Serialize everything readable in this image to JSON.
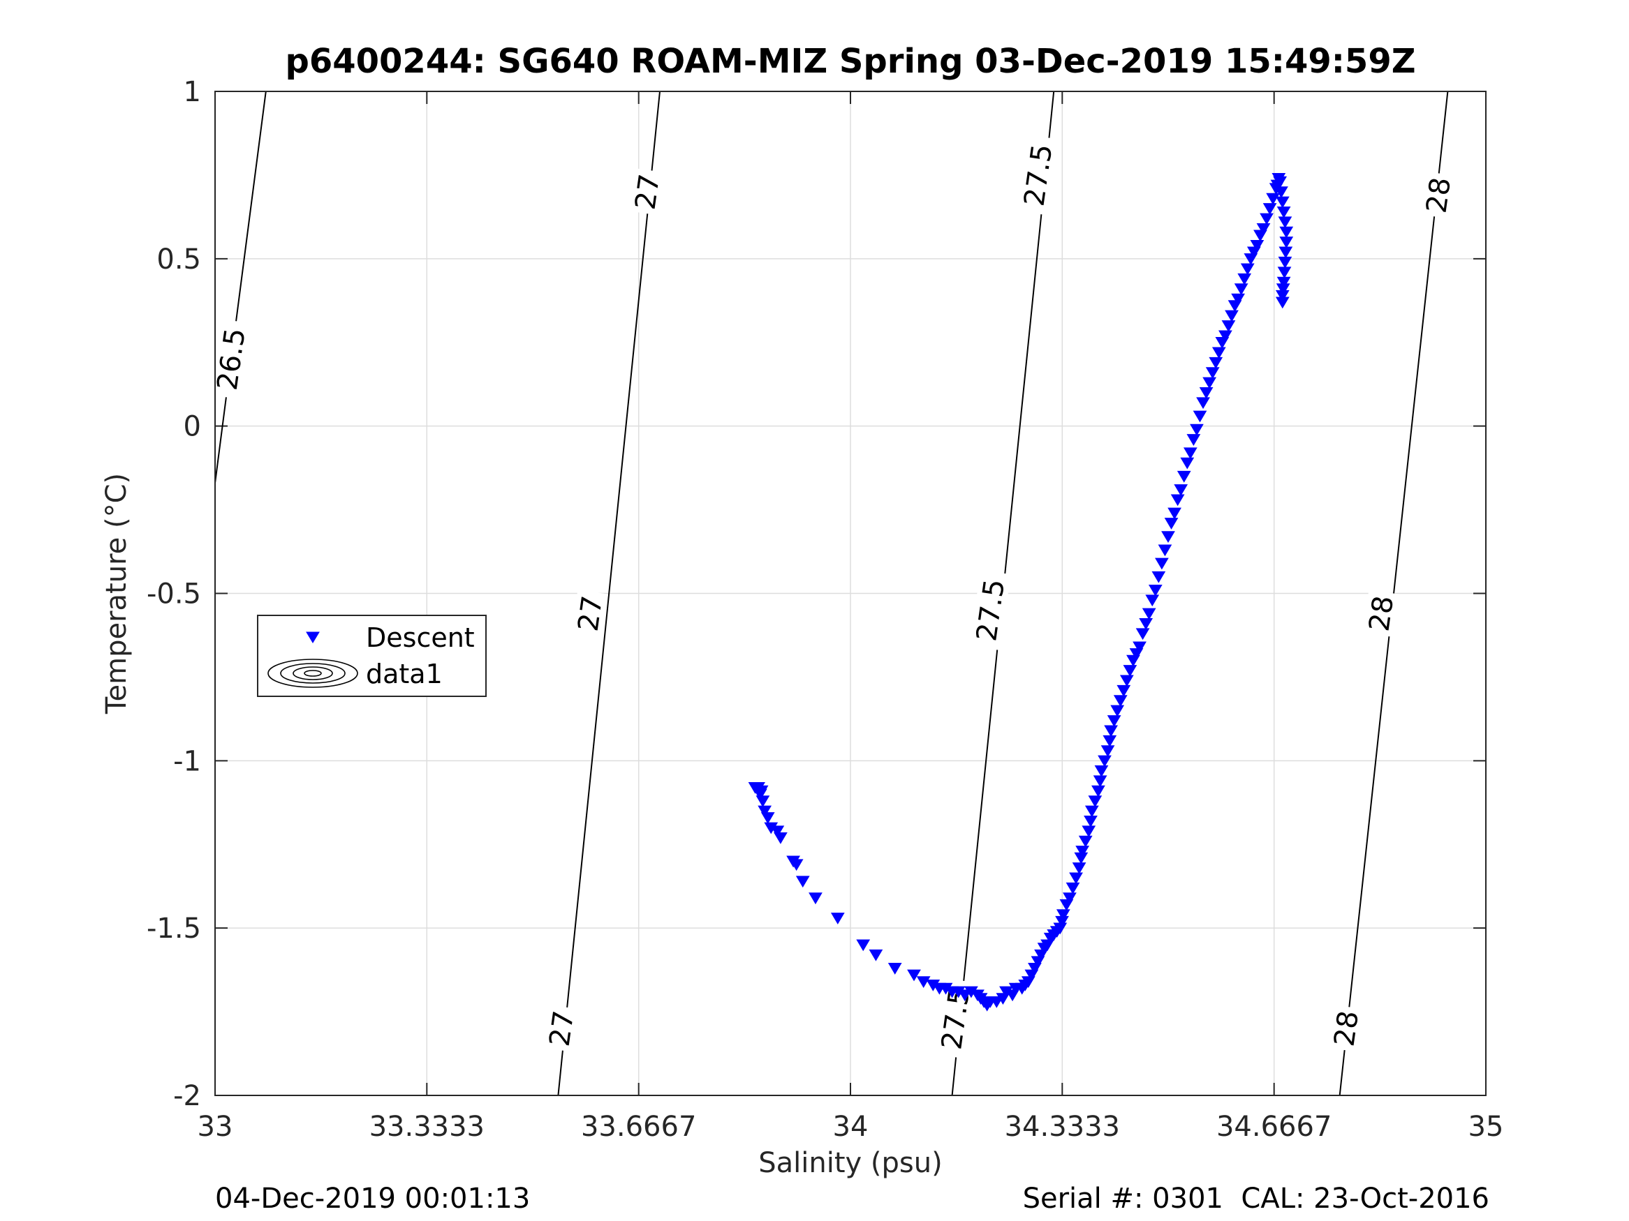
{
  "footer": {
    "timestamp": "04-Dec-2019 00:01:13",
    "serial": "Serial #: 0301  CAL: 23-Oct-2016"
  },
  "chart_data": {
    "type": "scatter",
    "title": "p6400244: SG640 ROAM-MIZ Spring 03-Dec-2019 15:49:59Z",
    "xlabel": "Salinity (psu)",
    "ylabel": "Temperature (°C)",
    "xlim": [
      33,
      35
    ],
    "ylim": [
      -2,
      1
    ],
    "xticks": [
      "33",
      "33.3333",
      "33.6667",
      "34",
      "34.3333",
      "34.6667",
      "35"
    ],
    "yticks": [
      "1",
      "0.5",
      "0",
      "-0.5",
      "-1",
      "-1.5",
      "-2"
    ],
    "grid": true,
    "legend": {
      "placement": "mid-left",
      "entries": [
        "Descent",
        "data1"
      ]
    },
    "colors": {
      "descent": "#0000ff",
      "contours": "#000000",
      "grid": "#dddddd"
    },
    "contours": {
      "name": "data1",
      "lines": [
        {
          "level": "26.5",
          "points": [
            [
              33.0,
              -0.17
            ],
            [
              33.08,
              1.0
            ]
          ]
        },
        {
          "level": "27",
          "points": [
            [
              33.54,
              -2.0
            ],
            [
              33.7,
              1.0
            ]
          ]
        },
        {
          "level": "27.5",
          "points": [
            [
              34.16,
              -2.0
            ],
            [
              34.32,
              1.0
            ]
          ]
        },
        {
          "level": "28",
          "points": [
            [
              34.77,
              -2.0
            ],
            [
              34.94,
              1.0
            ]
          ]
        }
      ],
      "labels": [
        {
          "text": "26.5",
          "x": 33.025,
          "y": 0.2
        },
        {
          "text": "27",
          "x": 33.68,
          "y": 0.7
        },
        {
          "text": "27",
          "x": 33.59,
          "y": -0.56
        },
        {
          "text": "27",
          "x": 33.545,
          "y": -1.8
        },
        {
          "text": "27.5",
          "x": 34.295,
          "y": 0.75
        },
        {
          "text": "27.5",
          "x": 34.22,
          "y": -0.55
        },
        {
          "text": "27.5",
          "x": 34.165,
          "y": -1.77
        },
        {
          "text": "28",
          "x": 34.925,
          "y": 0.69
        },
        {
          "text": "28",
          "x": 34.835,
          "y": -0.56
        },
        {
          "text": "28",
          "x": 34.78,
          "y": -1.8
        }
      ]
    },
    "series": [
      {
        "name": "Descent",
        "marker": "triangle-down",
        "points": [
          [
            33.85,
            -1.08
          ],
          [
            33.855,
            -1.08
          ],
          [
            33.86,
            -1.09
          ],
          [
            33.858,
            -1.1
          ],
          [
            33.862,
            -1.12
          ],
          [
            33.865,
            -1.15
          ],
          [
            33.87,
            -1.17
          ],
          [
            33.875,
            -1.2
          ],
          [
            33.885,
            -1.21
          ],
          [
            33.89,
            -1.23
          ],
          [
            33.91,
            -1.3
          ],
          [
            33.915,
            -1.31
          ],
          [
            33.925,
            -1.36
          ],
          [
            33.945,
            -1.41
          ],
          [
            33.98,
            -1.47
          ],
          [
            34.02,
            -1.55
          ],
          [
            34.04,
            -1.58
          ],
          [
            34.07,
            -1.62
          ],
          [
            34.1,
            -1.64
          ],
          [
            34.115,
            -1.66
          ],
          [
            34.13,
            -1.67
          ],
          [
            34.14,
            -1.68
          ],
          [
            34.15,
            -1.68
          ],
          [
            34.16,
            -1.69
          ],
          [
            34.17,
            -1.69
          ],
          [
            34.18,
            -1.7
          ],
          [
            34.19,
            -1.69
          ],
          [
            34.2,
            -1.7
          ],
          [
            34.205,
            -1.71
          ],
          [
            34.21,
            -1.72
          ],
          [
            34.215,
            -1.73
          ],
          [
            34.22,
            -1.72
          ],
          [
            34.23,
            -1.72
          ],
          [
            34.24,
            -1.71
          ],
          [
            34.245,
            -1.69
          ],
          [
            34.255,
            -1.7
          ],
          [
            34.26,
            -1.68
          ],
          [
            34.27,
            -1.68
          ],
          [
            34.275,
            -1.67
          ],
          [
            34.28,
            -1.66
          ],
          [
            34.285,
            -1.64
          ],
          [
            34.29,
            -1.62
          ],
          [
            34.295,
            -1.6
          ],
          [
            34.3,
            -1.58
          ],
          [
            34.305,
            -1.56
          ],
          [
            34.31,
            -1.55
          ],
          [
            34.315,
            -1.53
          ],
          [
            34.32,
            -1.52
          ],
          [
            34.325,
            -1.51
          ],
          [
            34.33,
            -1.5
          ],
          [
            34.333,
            -1.48
          ],
          [
            34.335,
            -1.46
          ],
          [
            34.34,
            -1.43
          ],
          [
            34.345,
            -1.41
          ],
          [
            34.35,
            -1.38
          ],
          [
            34.355,
            -1.35
          ],
          [
            34.36,
            -1.32
          ],
          [
            34.363,
            -1.29
          ],
          [
            34.365,
            -1.27
          ],
          [
            34.37,
            -1.24
          ],
          [
            34.375,
            -1.21
          ],
          [
            34.378,
            -1.18
          ],
          [
            34.38,
            -1.15
          ],
          [
            34.385,
            -1.12
          ],
          [
            34.39,
            -1.09
          ],
          [
            34.393,
            -1.06
          ],
          [
            34.395,
            -1.03
          ],
          [
            34.4,
            -1.0
          ],
          [
            34.405,
            -0.97
          ],
          [
            34.408,
            -0.94
          ],
          [
            34.41,
            -0.91
          ],
          [
            34.415,
            -0.88
          ],
          [
            34.42,
            -0.85
          ],
          [
            34.425,
            -0.82
          ],
          [
            34.43,
            -0.79
          ],
          [
            34.435,
            -0.76
          ],
          [
            34.44,
            -0.73
          ],
          [
            34.445,
            -0.7
          ],
          [
            34.45,
            -0.68
          ],
          [
            34.455,
            -0.66
          ],
          [
            34.46,
            -0.62
          ],
          [
            34.465,
            -0.59
          ],
          [
            34.47,
            -0.56
          ],
          [
            34.475,
            -0.52
          ],
          [
            34.48,
            -0.49
          ],
          [
            34.485,
            -0.45
          ],
          [
            34.49,
            -0.41
          ],
          [
            34.495,
            -0.37
          ],
          [
            34.5,
            -0.33
          ],
          [
            34.505,
            -0.29
          ],
          [
            34.51,
            -0.26
          ],
          [
            34.515,
            -0.22
          ],
          [
            34.52,
            -0.19
          ],
          [
            34.525,
            -0.15
          ],
          [
            34.53,
            -0.11
          ],
          [
            34.535,
            -0.08
          ],
          [
            34.54,
            -0.04
          ],
          [
            34.545,
            -0.01
          ],
          [
            34.55,
            0.03
          ],
          [
            34.555,
            0.07
          ],
          [
            34.56,
            0.1
          ],
          [
            34.565,
            0.13
          ],
          [
            34.57,
            0.16
          ],
          [
            34.575,
            0.19
          ],
          [
            34.58,
            0.22
          ],
          [
            34.585,
            0.25
          ],
          [
            34.59,
            0.27
          ],
          [
            34.595,
            0.3
          ],
          [
            34.6,
            0.33
          ],
          [
            34.605,
            0.36
          ],
          [
            34.61,
            0.38
          ],
          [
            34.615,
            0.41
          ],
          [
            34.62,
            0.44
          ],
          [
            34.625,
            0.47
          ],
          [
            34.63,
            0.5
          ],
          [
            34.635,
            0.52
          ],
          [
            34.64,
            0.54
          ],
          [
            34.645,
            0.57
          ],
          [
            34.65,
            0.59
          ],
          [
            34.655,
            0.62
          ],
          [
            34.66,
            0.65
          ],
          [
            34.665,
            0.68
          ],
          [
            34.67,
            0.71
          ],
          [
            34.672,
            0.72
          ],
          [
            34.674,
            0.74
          ],
          [
            34.676,
            0.73
          ],
          [
            34.678,
            0.7
          ],
          [
            34.68,
            0.67
          ],
          [
            34.682,
            0.64
          ],
          [
            34.684,
            0.61
          ],
          [
            34.686,
            0.58
          ],
          [
            34.686,
            0.55
          ],
          [
            34.685,
            0.52
          ],
          [
            34.684,
            0.49
          ],
          [
            34.683,
            0.46
          ],
          [
            34.682,
            0.43
          ],
          [
            34.681,
            0.41
          ],
          [
            34.68,
            0.39
          ],
          [
            34.68,
            0.37
          ]
        ]
      }
    ]
  }
}
